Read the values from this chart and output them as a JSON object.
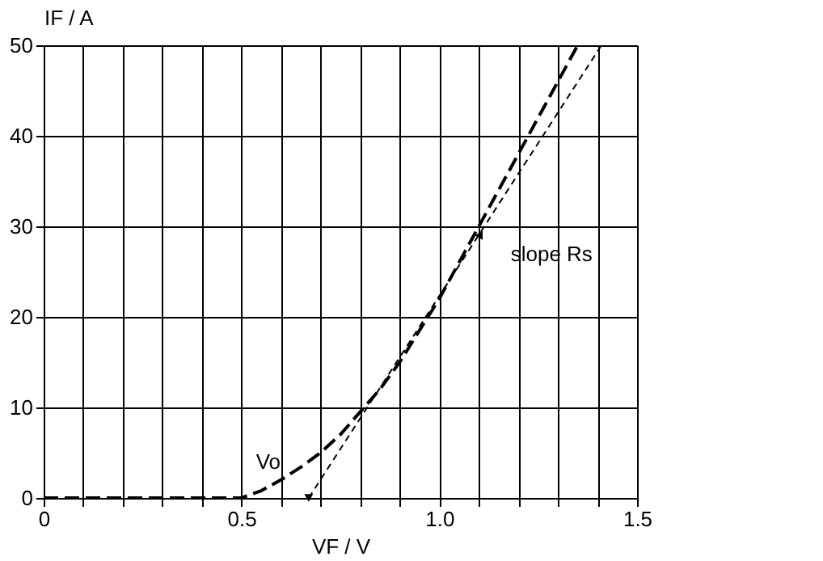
{
  "chart_data": {
    "type": "line",
    "xlabel": "VF / V",
    "ylabel": "IF / A",
    "xlim": [
      0,
      1.5
    ],
    "ylim": [
      0,
      50
    ],
    "xticks": [
      0,
      {
        "value": 0.1,
        "label": null
      },
      {
        "value": 0.2,
        "label": null
      },
      {
        "value": 0.3,
        "label": null
      },
      {
        "value": 0.4,
        "label": null
      },
      0.5,
      {
        "value": 0.6,
        "label": null
      },
      {
        "value": 0.7,
        "label": null
      },
      {
        "value": 0.8,
        "label": null
      },
      {
        "value": 0.9,
        "label": null
      },
      {
        "value": 1.0,
        "label": "1.0"
      },
      {
        "value": 1.1,
        "label": null
      },
      {
        "value": 1.2,
        "label": null
      },
      {
        "value": 1.3,
        "label": null
      },
      {
        "value": 1.4,
        "label": null
      },
      1.5
    ],
    "yticks": [
      0,
      10,
      20,
      30,
      40,
      50
    ],
    "grid": true,
    "line_style": "dashed",
    "series": [
      {
        "color": "#000000",
        "x": [
          0,
          0.1,
          0.2,
          0.3,
          0.4,
          0.5,
          0.55,
          0.6,
          0.65,
          0.7,
          0.75,
          0.8,
          0.85,
          0.9,
          0.95,
          1.0,
          1.05,
          1.1,
          1.15,
          1.2,
          1.25,
          1.3,
          1.35
        ],
        "values": [
          0,
          0,
          0,
          0,
          0,
          0,
          0.8,
          2,
          3.4,
          5,
          7,
          9.5,
          12,
          15,
          18.5,
          22,
          26,
          30,
          34,
          38,
          42,
          46,
          50
        ]
      },
      {
        "color": "#000000",
        "type": "line",
        "x": [
          0.67,
          1.41
        ],
        "values": [
          0,
          50
        ]
      }
    ],
    "annotations": [
      {
        "text": "Vo",
        "x": 0.67,
        "y": 0
      },
      {
        "text": "slope Rs",
        "x": 1.1,
        "y": 29
      }
    ]
  }
}
